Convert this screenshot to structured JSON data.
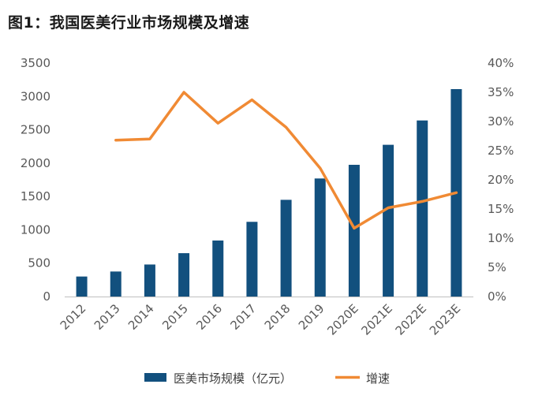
{
  "title": "图1：我国医美行业市场规模及增速",
  "chart_data": {
    "type": "bar",
    "categories": [
      "2012",
      "2013",
      "2014",
      "2015",
      "2016",
      "2017",
      "2018",
      "2019",
      "2020E",
      "2021E",
      "2022E",
      "2023E"
    ],
    "series": [
      {
        "name": "医美市场规模（亿元）",
        "type": "bar",
        "axis": "left",
        "color": "#12507e",
        "values": [
          300,
          375,
          480,
          650,
          840,
          1120,
          1450,
          1770,
          1975,
          2275,
          2640,
          3110
        ]
      },
      {
        "name": "增速",
        "type": "line",
        "axis": "right",
        "color": "#f08a34",
        "values": [
          null,
          26.8,
          27.0,
          35.0,
          29.7,
          33.7,
          29.0,
          22.0,
          11.7,
          15.2,
          16.3,
          17.8
        ]
      }
    ],
    "y_left": {
      "ylim": [
        0,
        3500
      ],
      "ticks": [
        0,
        500,
        1000,
        1500,
        2000,
        2500,
        3000,
        3500
      ]
    },
    "y_right": {
      "ylim": [
        0,
        40
      ],
      "ticks": [
        "0%",
        "5%",
        "10%",
        "15%",
        "20%",
        "25%",
        "30%",
        "35%",
        "40%"
      ]
    },
    "legend": {
      "position": "bottom",
      "items": [
        "医美市场规模（亿元）",
        "增速"
      ]
    },
    "grid": false
  }
}
